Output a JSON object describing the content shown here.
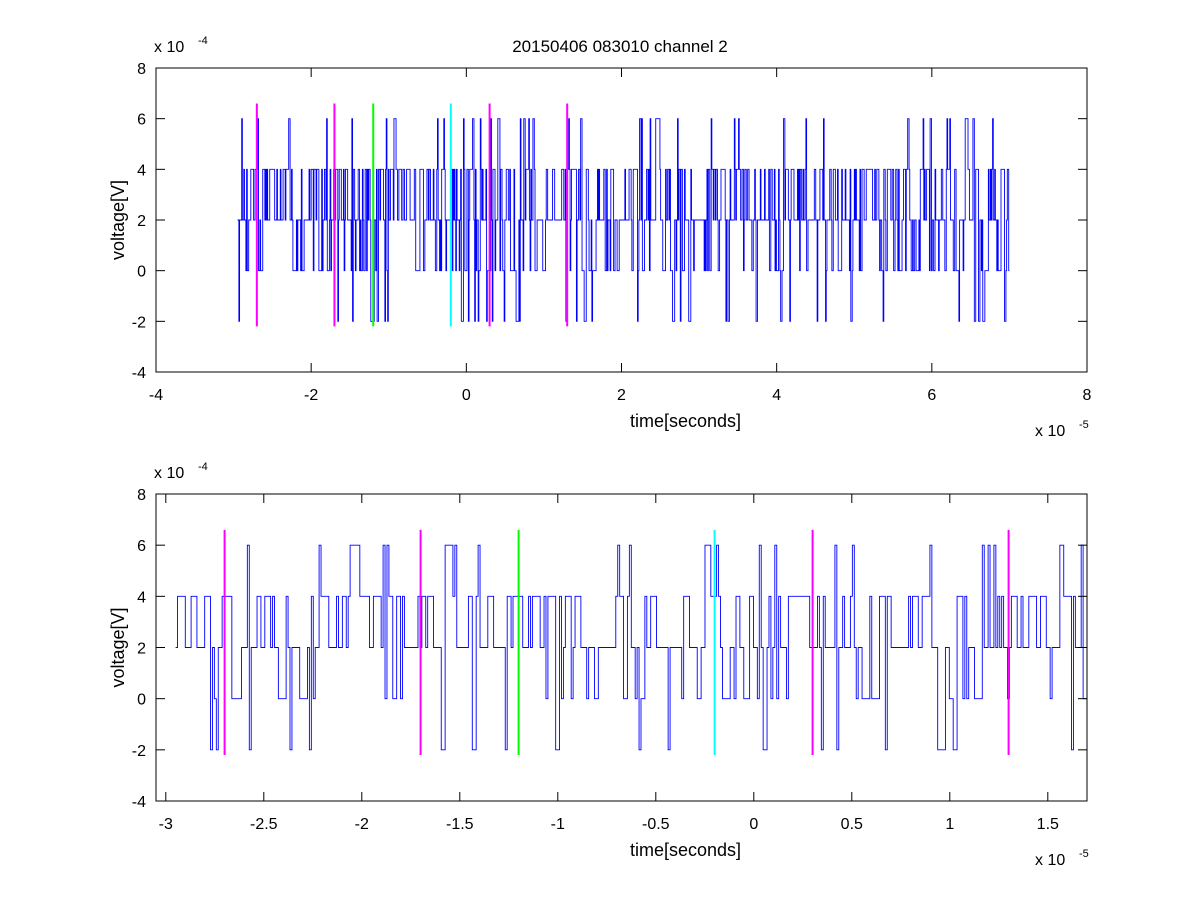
{
  "figure_title": "20150406 083010 channel 2",
  "colors": {
    "signal": "#0000ff",
    "magenta": "#ff00ff",
    "green": "#00ff00",
    "cyan": "#00ffff",
    "axis": "#000000"
  },
  "chart_data": [
    {
      "type": "line",
      "title": "20150406 083010 channel 2",
      "xlabel": "time[seconds]",
      "ylabel": "voltage[V]",
      "x_multiplier": "x 10",
      "x_exponent": "-5",
      "y_multiplier": "x 10",
      "y_exponent": "-4",
      "xlim": [
        -4,
        8
      ],
      "ylim": [
        -4,
        8
      ],
      "xticks": [
        -4,
        -2,
        0,
        2,
        4,
        6,
        8
      ],
      "yticks": [
        -4,
        -2,
        0,
        2,
        4,
        6,
        8
      ],
      "xtick_labels": [
        "-4",
        "-2",
        "0",
        "2",
        "4",
        "6",
        "8"
      ],
      "ytick_labels": [
        "-4",
        "-2",
        "0",
        "2",
        "4",
        "6",
        "8"
      ],
      "grid": false,
      "signal": {
        "x_start": -2.95,
        "x_end": 7.0,
        "levels": [
          -2,
          0,
          2,
          4,
          6
        ],
        "baseline": 2,
        "seed": 7,
        "n": 1100
      },
      "markers": [
        {
          "x": -2.7,
          "color": "magenta",
          "ymin": -2.2,
          "ymax": 6.6
        },
        {
          "x": -1.7,
          "color": "magenta",
          "ymin": -2.2,
          "ymax": 6.6
        },
        {
          "x": -1.2,
          "color": "green",
          "ymin": -2.2,
          "ymax": 6.6
        },
        {
          "x": -0.2,
          "color": "cyan",
          "ymin": -2.2,
          "ymax": 6.6
        },
        {
          "x": 0.3,
          "color": "magenta",
          "ymin": -2.2,
          "ymax": 6.6
        },
        {
          "x": 1.3,
          "color": "magenta",
          "ymin": -2.2,
          "ymax": 6.6
        }
      ]
    },
    {
      "type": "line",
      "title": "",
      "xlabel": "time[seconds]",
      "ylabel": "voltage[V]",
      "x_multiplier": "x 10",
      "x_exponent": "-5",
      "y_multiplier": "x 10",
      "y_exponent": "-4",
      "xlim": [
        -3.05,
        1.7
      ],
      "ylim": [
        -4,
        8
      ],
      "xticks": [
        -3,
        -2.5,
        -2,
        -1.5,
        -1,
        -0.5,
        0,
        0.5,
        1,
        1.5
      ],
      "yticks": [
        -4,
        -2,
        0,
        2,
        4,
        6,
        8
      ],
      "xtick_labels": [
        "-3",
        "-2.5",
        "-2",
        "-1.5",
        "-1",
        "-0.5",
        "0",
        "0.5",
        "1",
        "1.5"
      ],
      "ytick_labels": [
        "-4",
        "-2",
        "0",
        "2",
        "4",
        "6",
        "8"
      ],
      "grid": false,
      "signal": {
        "x_start": -2.95,
        "x_end": 1.7,
        "levels": [
          -2,
          0,
          2,
          4,
          6
        ],
        "baseline": 2,
        "seed": 13,
        "n": 470
      },
      "markers": [
        {
          "x": -2.7,
          "color": "magenta",
          "ymin": -2.2,
          "ymax": 6.6
        },
        {
          "x": -1.7,
          "color": "magenta",
          "ymin": -2.2,
          "ymax": 6.6
        },
        {
          "x": -1.2,
          "color": "green",
          "ymin": -2.2,
          "ymax": 6.6
        },
        {
          "x": -0.2,
          "color": "cyan",
          "ymin": -2.2,
          "ymax": 6.6
        },
        {
          "x": 0.3,
          "color": "magenta",
          "ymin": -2.2,
          "ymax": 6.6
        },
        {
          "x": 1.3,
          "color": "magenta",
          "ymin": -2.2,
          "ymax": 6.6
        }
      ]
    }
  ]
}
